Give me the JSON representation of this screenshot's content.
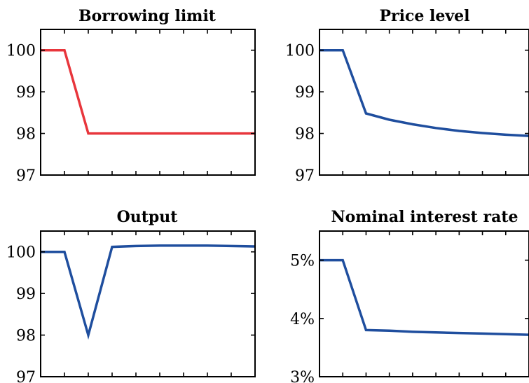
{
  "chart_data": [
    {
      "type": "line",
      "title": "Borrowing limit",
      "xlabel": "",
      "ylabel": "",
      "x": [
        0,
        1,
        2,
        3,
        4,
        5,
        6,
        7,
        8,
        9
      ],
      "xlim": [
        0,
        9
      ],
      "ylim": [
        97,
        100.5
      ],
      "yticks": [
        97,
        98,
        99,
        100
      ],
      "ytick_labels": [
        "97",
        "98",
        "99",
        "100"
      ],
      "grid": false,
      "series": [
        {
          "color": "#e8363c",
          "values": [
            100,
            100,
            98,
            98,
            98,
            98,
            98,
            98,
            98,
            98
          ]
        }
      ]
    },
    {
      "type": "line",
      "title": "Price level",
      "xlabel": "",
      "ylabel": "",
      "x": [
        0,
        1,
        2,
        3,
        4,
        5,
        6,
        7,
        8,
        9
      ],
      "xlim": [
        0,
        9
      ],
      "ylim": [
        97,
        100.5
      ],
      "yticks": [
        97,
        98,
        99,
        100
      ],
      "ytick_labels": [
        "97",
        "98",
        "99",
        "100"
      ],
      "grid": false,
      "series": [
        {
          "color": "#1f4e9e",
          "values": [
            100,
            100,
            98.48,
            98.33,
            98.22,
            98.13,
            98.06,
            98.01,
            97.97,
            97.94
          ]
        }
      ]
    },
    {
      "type": "line",
      "title": "Output",
      "xlabel": "",
      "ylabel": "",
      "x": [
        0,
        1,
        2,
        3,
        4,
        5,
        6,
        7,
        8,
        9
      ],
      "xlim": [
        0,
        9
      ],
      "ylim": [
        97,
        100.5
      ],
      "yticks": [
        97,
        98,
        99,
        100
      ],
      "ytick_labels": [
        "97",
        "98",
        "99",
        "100"
      ],
      "grid": false,
      "series": [
        {
          "color": "#1f4e9e",
          "values": [
            100,
            100,
            98,
            100.12,
            100.14,
            100.15,
            100.15,
            100.15,
            100.14,
            100.13
          ]
        }
      ]
    },
    {
      "type": "line",
      "title": "Nominal interest rate",
      "xlabel": "",
      "ylabel": "",
      "x": [
        0,
        1,
        2,
        3,
        4,
        5,
        6,
        7,
        8,
        9
      ],
      "xlim": [
        0,
        9
      ],
      "ylim": [
        3,
        5.5
      ],
      "yticks": [
        3,
        4,
        5
      ],
      "ytick_labels": [
        "3%",
        "4%",
        "5%"
      ],
      "grid": false,
      "series": [
        {
          "color": "#1f4e9e",
          "values": [
            5,
            5,
            3.8,
            3.79,
            3.77,
            3.76,
            3.75,
            3.74,
            3.73,
            3.72
          ]
        }
      ]
    }
  ]
}
